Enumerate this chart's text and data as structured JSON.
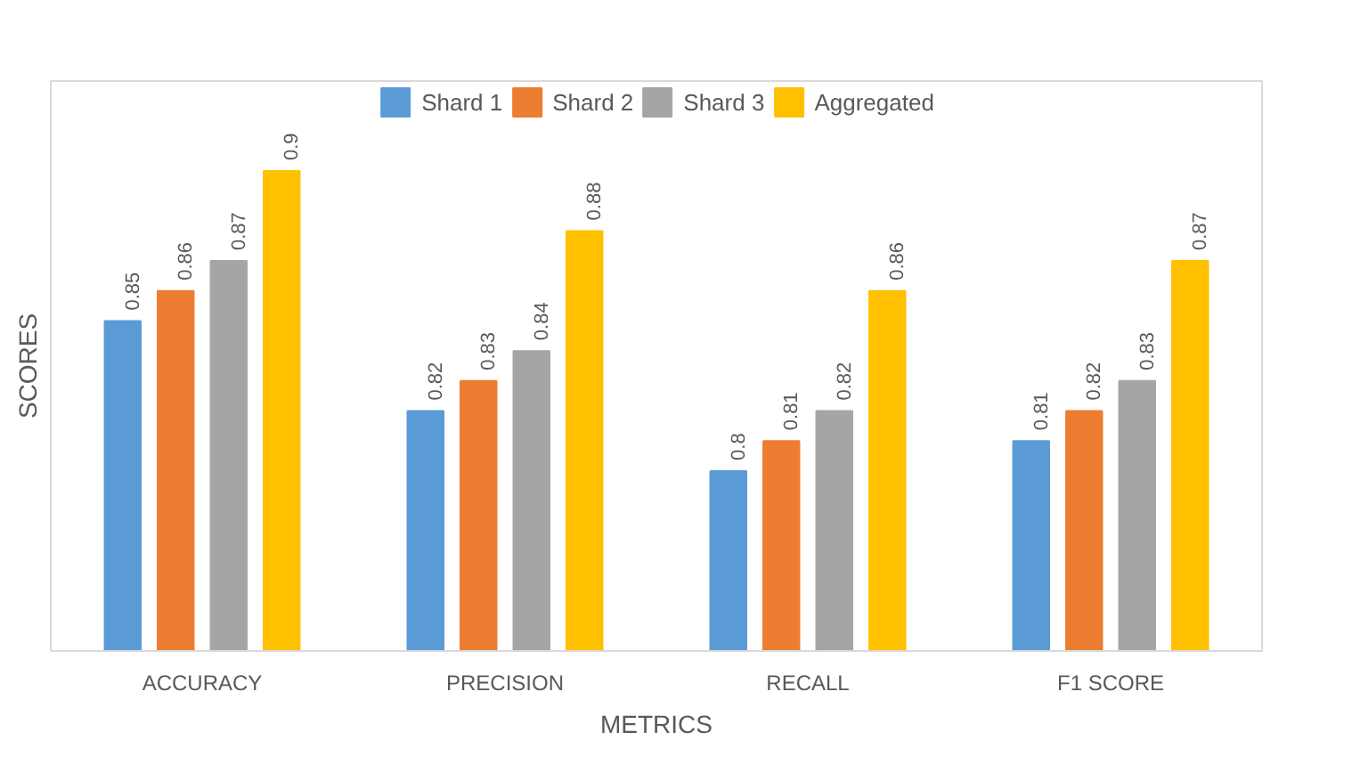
{
  "chart_data": {
    "type": "bar",
    "xlabel": "METRICS",
    "ylabel": "SCORES",
    "categories": [
      "ACCURACY",
      "PRECISION",
      "RECALL",
      "F1 SCORE"
    ],
    "series": [
      {
        "name": "Shard 1",
        "color": "#5b9bd5",
        "values": [
          0.85,
          0.82,
          0.8,
          0.81
        ]
      },
      {
        "name": "Shard 2",
        "color": "#ed7d31",
        "values": [
          0.86,
          0.83,
          0.81,
          0.82
        ]
      },
      {
        "name": "Shard 3",
        "color": "#a5a5a5",
        "values": [
          0.87,
          0.84,
          0.82,
          0.83
        ]
      },
      {
        "name": "Aggregated",
        "color": "#ffc000",
        "values": [
          0.9,
          0.88,
          0.86,
          0.87
        ]
      }
    ],
    "ylim": [
      0.74,
      0.93
    ],
    "tick_labels": "x",
    "data_labels": true,
    "legend": "top",
    "grid": false
  }
}
